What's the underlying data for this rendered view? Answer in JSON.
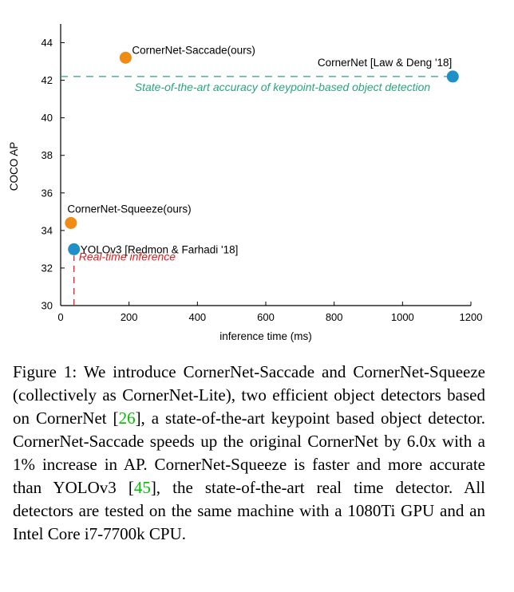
{
  "chart_data": {
    "type": "scatter",
    "xlabel": "inference time (ms)",
    "ylabel": "COCO AP",
    "xlim": [
      0,
      1200
    ],
    "ylim": [
      30,
      45
    ],
    "xticks": [
      0,
      200,
      400,
      600,
      800,
      1000,
      1200
    ],
    "yticks": [
      30,
      32,
      34,
      36,
      38,
      40,
      42,
      44
    ],
    "grid": false,
    "points": [
      {
        "label": "CornerNet-Saccade(ours)",
        "x": 190,
        "y": 43.2,
        "color": "#ee8c16"
      },
      {
        "label": "CornerNet [Law & Deng '18]",
        "x": 1147,
        "y": 42.2,
        "color": "#1f8fc7"
      },
      {
        "label": "CornerNet-Squeeze(ours)",
        "x": 30,
        "y": 34.4,
        "color": "#ee8c16"
      },
      {
        "label": "YOLOv3 [Redmon & Farhadi '18]",
        "x": 39,
        "y": 33.0,
        "color": "#1f8fc7"
      }
    ],
    "reference_lines": [
      {
        "orientation": "horizontal",
        "value": 42.2,
        "color": "#2aa57a",
        "text": "State-of-the-art accuracy of keypoint-based object detection"
      },
      {
        "orientation": "vertical",
        "value": 39,
        "color": "#e02020",
        "text": "Real-time inference"
      }
    ]
  },
  "caption": {
    "prefix": "Figure 1: We introduce CornerNet-Saccade and CornerNet-Squeeze (collectively as CornerNet-Lite), two efficient object detectors based on CornerNet [",
    "ref1": "26",
    "middle": "], a state-of-the-art keypoint based object detector. CornerNet-Saccade speeds up the original CornerNet by 6.0x with a 1% increase in AP. CornerNet-Squeeze is faster and more accurate than YOLOv3 [",
    "ref2": "45",
    "suffix": "], the state-of-the-art real time detector. All detectors are tested on the same machine with a 1080Ti GPU and an Intel Core i7-7700k CPU."
  }
}
